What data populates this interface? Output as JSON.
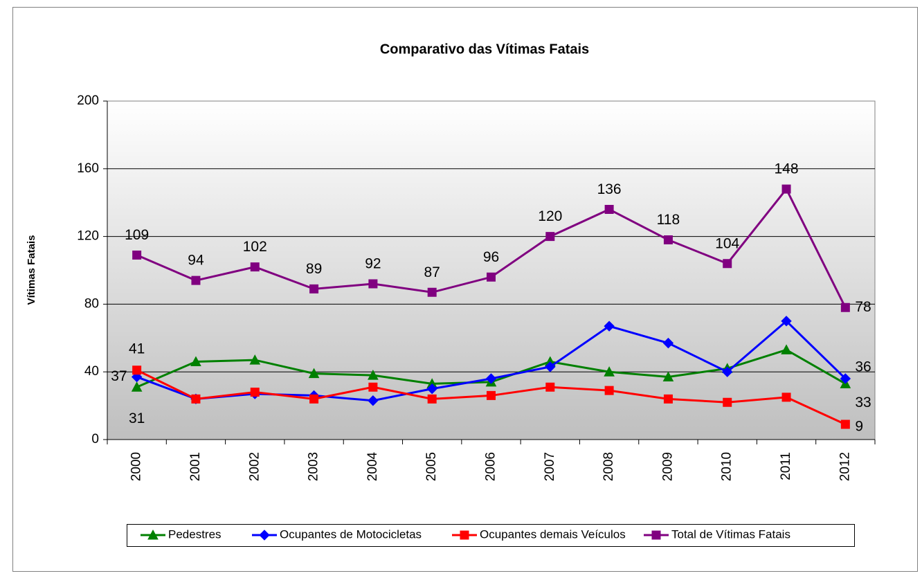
{
  "chart_data": {
    "type": "line",
    "title": "Comparativo das Vítimas Fatais",
    "y_label": "Vítimas Fatais",
    "categories": [
      "2000",
      "2001",
      "2002",
      "2003",
      "2004",
      "2005",
      "2006",
      "2007",
      "2008",
      "2009",
      "2010",
      "2011",
      "2012"
    ],
    "series": [
      {
        "name": "Pedestres",
        "color": "#008000",
        "marker": "triangle",
        "data_labels": "ends",
        "values": [
          31,
          46,
          47,
          39,
          38,
          33,
          34,
          46,
          40,
          37,
          42,
          53,
          33
        ]
      },
      {
        "name": "Ocupantes de Motocicletas",
        "color": "#0000ff",
        "marker": "diamond",
        "data_labels": "ends",
        "values": [
          37,
          24,
          27,
          26,
          23,
          30,
          36,
          43,
          67,
          57,
          40,
          70,
          36
        ]
      },
      {
        "name": "Ocupantes demais Veículos",
        "color": "#ff0000",
        "marker": "square",
        "data_labels": "ends",
        "values": [
          41,
          24,
          28,
          24,
          31,
          24,
          26,
          31,
          29,
          24,
          22,
          25,
          9
        ]
      },
      {
        "name": "Total de Vítimas Fatais",
        "color": "#800080",
        "marker": "square",
        "data_labels": "all",
        "values": [
          109,
          94,
          102,
          89,
          92,
          87,
          96,
          120,
          136,
          118,
          104,
          148,
          78
        ]
      }
    ],
    "ylim": [
      0,
      200
    ],
    "yticks": [
      0,
      40,
      80,
      120,
      160,
      200
    ],
    "grid": true,
    "legend": "bottom"
  }
}
